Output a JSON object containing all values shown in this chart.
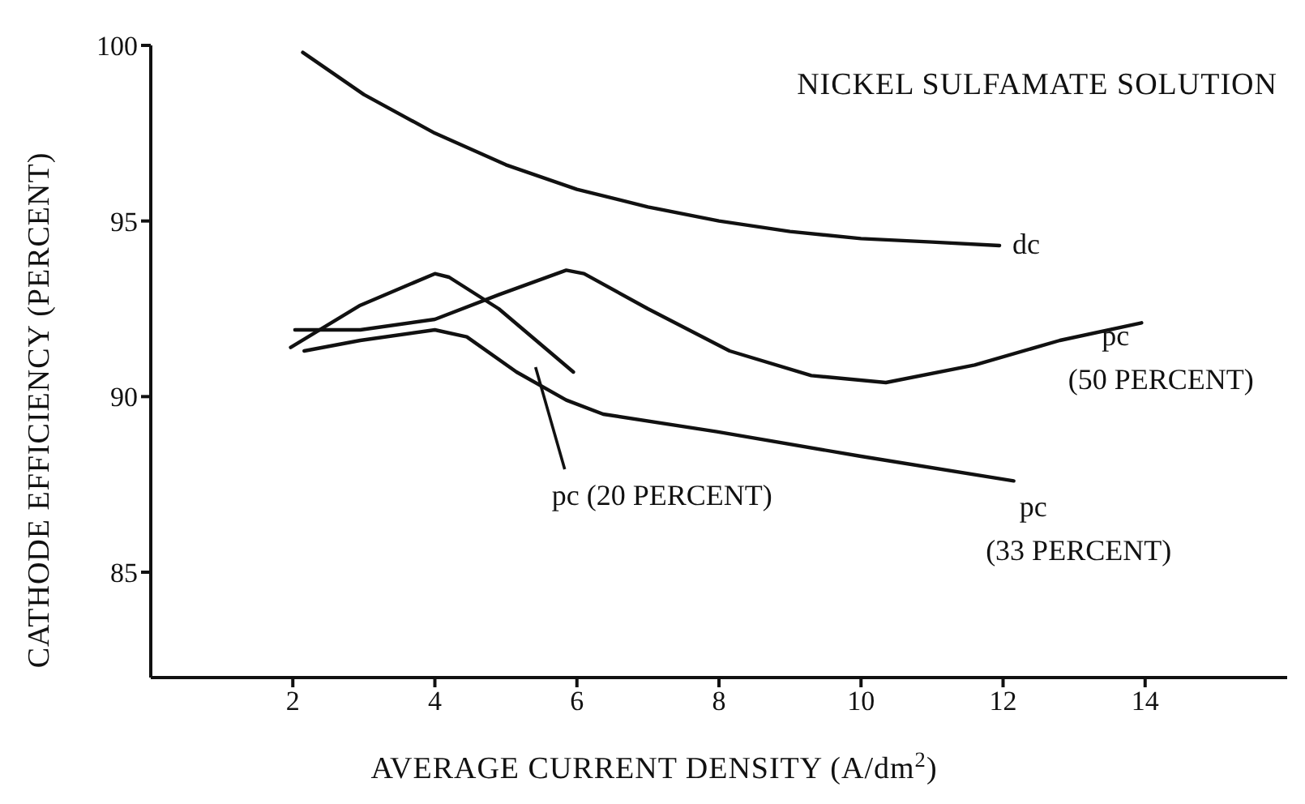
{
  "chart_data": {
    "type": "line",
    "title": "NICKEL SULFAMATE SOLUTION",
    "xlabel": "AVERAGE CURRENT DENSITY (A/dm$^{2}$)",
    "ylabel": "CATHODE EFFICIENCY (PERCENT)",
    "xlim": [
      0,
      16
    ],
    "ylim": [
      82,
      100
    ],
    "xticks": [
      2,
      4,
      6,
      8,
      10,
      12,
      14
    ],
    "yticks": [
      85,
      90,
      95,
      100
    ],
    "marker": "none",
    "line_style": "solid",
    "series": [
      {
        "name": "dc",
        "color": "#111111",
        "x": [
          2.14,
          3,
          4,
          5,
          6,
          7,
          8,
          9,
          10,
          11,
          11.95
        ],
        "values": [
          99.8,
          98.6,
          97.5,
          96.6,
          95.9,
          95.4,
          95.0,
          94.7,
          94.5,
          94.4,
          94.3
        ]
      },
      {
        "name": "pc (20 PERCENT)",
        "color": "#111111",
        "x": [
          1.97,
          2.95,
          4,
          4.2,
          4.9,
          5.6,
          5.95
        ],
        "values": [
          91.4,
          92.6,
          93.5,
          93.4,
          92.5,
          91.3,
          90.7
        ]
      },
      {
        "name": "pc (50 PERCENT)",
        "color": "#111111",
        "x": [
          2.03,
          2.95,
          4,
          4.9,
          5.85,
          6.1,
          7,
          8.15,
          9.3,
          10.35,
          11.6,
          12.8,
          13.95
        ],
        "values": [
          91.9,
          91.9,
          92.2,
          92.9,
          93.6,
          93.5,
          92.5,
          91.3,
          90.6,
          90.4,
          90.9,
          91.6,
          92.1
        ]
      },
      {
        "name": "pc (33 PERCENT)",
        "color": "#111111",
        "x": [
          2.16,
          2.95,
          4,
          4.45,
          5.15,
          5.85,
          6.37,
          7.97,
          10,
          12.15
        ],
        "values": [
          91.3,
          91.6,
          91.9,
          91.7,
          90.7,
          89.9,
          89.5,
          89.0,
          88.3,
          87.6
        ]
      }
    ]
  }
}
